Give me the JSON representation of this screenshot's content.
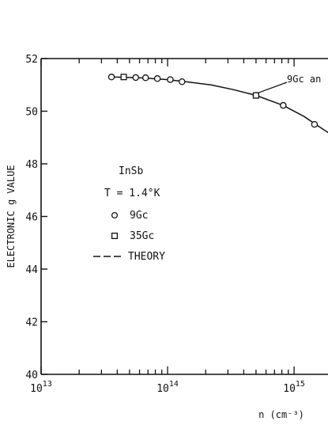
{
  "chart_data": {
    "type": "scatter",
    "title": "",
    "xlabel": "n (cm⁻³)",
    "ylabel": "ELECTRONIC g VALUE",
    "xscale": "log",
    "xlim": [
      10000000000000.0,
      2300000000000000.0
    ],
    "ylim": [
      40,
      52
    ],
    "x_ticks": [
      {
        "value": 10000000000000.0,
        "base": "10",
        "exp": "13"
      },
      {
        "value": 100000000000000.0,
        "base": "10",
        "exp": "14"
      },
      {
        "value": 1000000000000000.0,
        "base": "10",
        "exp": "15"
      }
    ],
    "y_ticks": [
      40,
      42,
      44,
      46,
      48,
      50,
      52
    ],
    "grid": false,
    "legend": {
      "placement": "center-left",
      "lines": [
        "InSb",
        "T = 1.4°K"
      ],
      "entries": [
        {
          "marker": "circle",
          "label": "9Gc"
        },
        {
          "marker": "square",
          "label": "35Gc"
        },
        {
          "marker": "dash",
          "label": "THEORY"
        }
      ]
    },
    "series": [
      {
        "marker": "circle",
        "points": [
          {
            "x": 36000000000000.0,
            "y": 51.3
          },
          {
            "x": 56000000000000.0,
            "y": 51.28
          },
          {
            "x": 67000000000000.0,
            "y": 51.27
          },
          {
            "x": 83000000000000.0,
            "y": 51.24
          },
          {
            "x": 105000000000000.0,
            "y": 51.2
          },
          {
            "x": 130000000000000.0,
            "y": 51.12
          },
          {
            "x": 500000000000000.0,
            "y": 50.6
          },
          {
            "x": 820000000000000.0,
            "y": 50.22
          },
          {
            "x": 1450000000000000.0,
            "y": 49.5
          }
        ]
      },
      {
        "marker": "square",
        "points": [
          {
            "x": 45000000000000.0,
            "y": 51.3
          },
          {
            "x": 500000000000000.0,
            "y": 50.6
          }
        ]
      },
      {
        "marker": "line",
        "points": [
          {
            "x": 36000000000000.0,
            "y": 51.3
          },
          {
            "x": 60000000000000.0,
            "y": 51.27
          },
          {
            "x": 100000000000000.0,
            "y": 51.2
          },
          {
            "x": 150000000000000.0,
            "y": 51.1
          },
          {
            "x": 220000000000000.0,
            "y": 51.0
          },
          {
            "x": 330000000000000.0,
            "y": 50.82
          },
          {
            "x": 500000000000000.0,
            "y": 50.6
          },
          {
            "x": 820000000000000.0,
            "y": 50.22
          },
          {
            "x": 1200000000000000.0,
            "y": 49.8
          },
          {
            "x": 1500000000000000.0,
            "y": 49.48
          },
          {
            "x": 2300000000000000.0,
            "y": 48.9
          }
        ]
      }
    ],
    "annotations": [
      {
        "text": "9Gc an",
        "target_x": 500000000000000.0,
        "target_y": 50.6
      }
    ]
  }
}
